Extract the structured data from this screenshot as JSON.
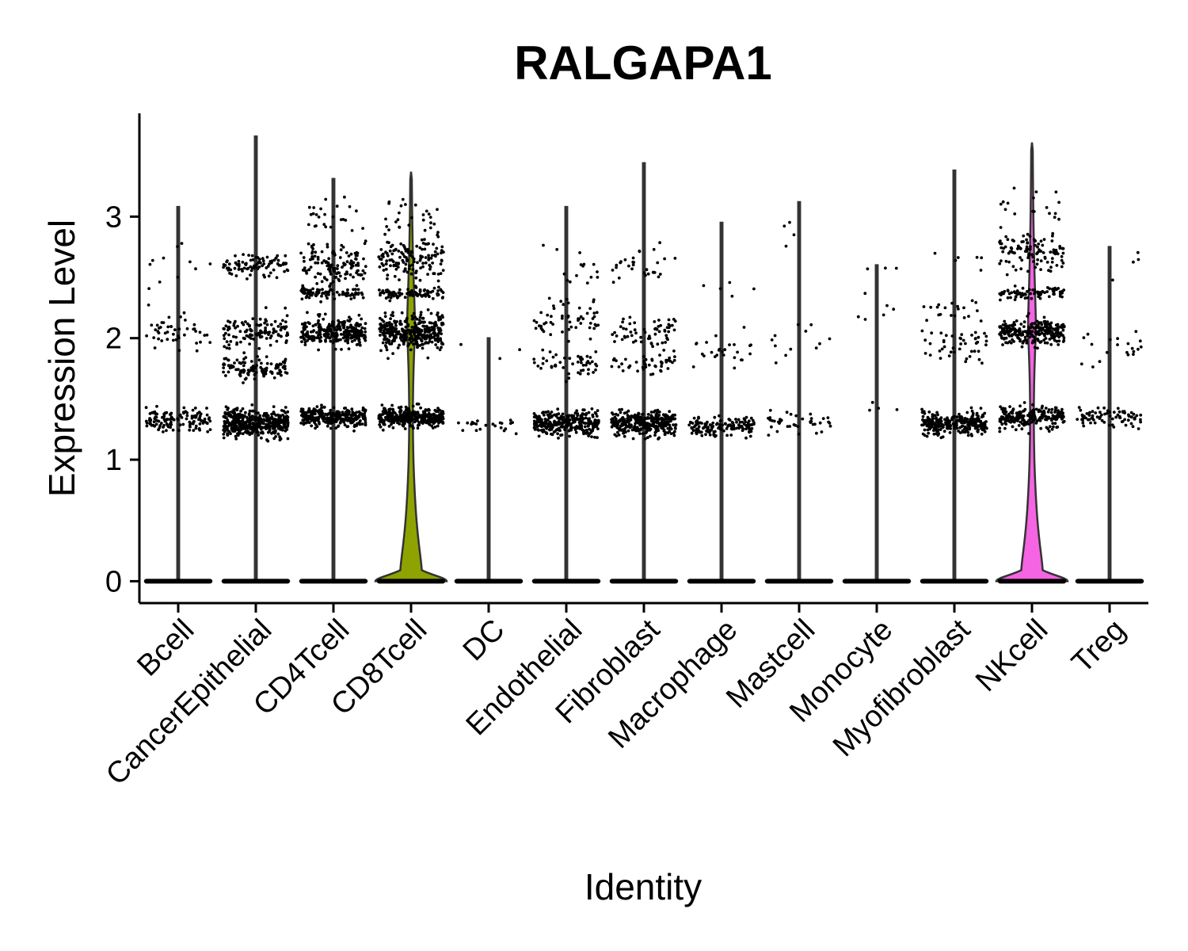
{
  "chart_data": {
    "type": "violin",
    "title": "RALGAPA1",
    "xlabel": "Identity",
    "ylabel": "Expression Level",
    "ylim": [
      -0.18,
      3.85
    ],
    "yticks": [
      0,
      1,
      2,
      3
    ],
    "ytick_labels": [
      "0",
      "1",
      "2",
      "3"
    ],
    "categories": [
      "Bcell",
      "CancerEpithelial",
      "CD4Tcell",
      "CD8Tcell",
      "DC",
      "Endothelial",
      "Fibroblast",
      "Macrophage",
      "Mastcell",
      "Monocyte",
      "Myofibroblast",
      "NKcell",
      "Treg"
    ],
    "max_expression": [
      3.08,
      3.66,
      3.31,
      3.37,
      2.0,
      3.08,
      3.44,
      2.95,
      3.12,
      2.6,
      3.38,
      3.61,
      2.75
    ],
    "fill_colors": [
      "#ffffff",
      "#ffffff",
      "#ffffff",
      "#8fa300",
      "#ffffff",
      "#ffffff",
      "#ffffff",
      "#ffffff",
      "#ffffff",
      "#ffffff",
      "#ffffff",
      "#f564e3",
      "#ffffff"
    ],
    "expressing_clusters": [
      [
        {
          "level": 1.33,
          "spread": 0.09,
          "points": 130
        },
        {
          "level": 2.05,
          "spread": 0.12,
          "points": 45
        },
        {
          "level": 2.6,
          "spread": 0.2,
          "points": 12
        }
      ],
      [
        {
          "level": 1.3,
          "spread": 0.1,
          "points": 420
        },
        {
          "level": 1.75,
          "spread": 0.08,
          "points": 110
        },
        {
          "level": 2.05,
          "spread": 0.12,
          "points": 120
        },
        {
          "level": 2.6,
          "spread": 0.08,
          "points": 90
        }
      ],
      [
        {
          "level": 1.35,
          "spread": 0.07,
          "points": 300
        },
        {
          "level": 2.05,
          "spread": 0.1,
          "points": 280
        },
        {
          "level": 2.37,
          "spread": 0.04,
          "points": 80
        },
        {
          "level": 2.6,
          "spread": 0.15,
          "points": 130
        },
        {
          "level": 3.0,
          "spread": 0.12,
          "points": 25
        }
      ],
      [
        {
          "level": 1.35,
          "spread": 0.07,
          "points": 320
        },
        {
          "level": 2.05,
          "spread": 0.12,
          "points": 340
        },
        {
          "level": 2.37,
          "spread": 0.04,
          "points": 90
        },
        {
          "level": 2.65,
          "spread": 0.15,
          "points": 140
        },
        {
          "level": 3.0,
          "spread": 0.15,
          "points": 25
        }
      ],
      [
        {
          "level": 1.27,
          "spread": 0.06,
          "points": 22
        },
        {
          "level": 1.9,
          "spread": 0.1,
          "points": 3
        }
      ],
      [
        {
          "level": 1.3,
          "spread": 0.09,
          "points": 300
        },
        {
          "level": 1.8,
          "spread": 0.1,
          "points": 50
        },
        {
          "level": 2.15,
          "spread": 0.15,
          "points": 55
        },
        {
          "level": 2.55,
          "spread": 0.15,
          "points": 15
        }
      ],
      [
        {
          "level": 1.3,
          "spread": 0.09,
          "points": 330
        },
        {
          "level": 1.8,
          "spread": 0.08,
          "points": 45
        },
        {
          "level": 2.05,
          "spread": 0.1,
          "points": 60
        },
        {
          "level": 2.6,
          "spread": 0.12,
          "points": 30
        }
      ],
      [
        {
          "level": 1.27,
          "spread": 0.07,
          "points": 150
        },
        {
          "level": 1.9,
          "spread": 0.15,
          "points": 25
        },
        {
          "level": 2.3,
          "spread": 0.2,
          "points": 6
        }
      ],
      [
        {
          "level": 1.3,
          "spread": 0.08,
          "points": 40
        },
        {
          "level": 1.95,
          "spread": 0.15,
          "points": 12
        },
        {
          "level": 2.9,
          "spread": 0.2,
          "points": 4
        }
      ],
      [
        {
          "level": 1.4,
          "spread": 0.05,
          "points": 4
        },
        {
          "level": 2.2,
          "spread": 0.2,
          "points": 6
        },
        {
          "level": 2.58,
          "spread": 0.03,
          "points": 3
        }
      ],
      [
        {
          "level": 1.3,
          "spread": 0.08,
          "points": 280
        },
        {
          "level": 1.95,
          "spread": 0.12,
          "points": 45
        },
        {
          "level": 2.2,
          "spread": 0.12,
          "points": 20
        },
        {
          "level": 2.6,
          "spread": 0.1,
          "points": 6
        }
      ],
      [
        {
          "level": 1.35,
          "spread": 0.08,
          "points": 220
        },
        {
          "level": 2.05,
          "spread": 0.09,
          "points": 260
        },
        {
          "level": 2.37,
          "spread": 0.04,
          "points": 80
        },
        {
          "level": 2.7,
          "spread": 0.15,
          "points": 110
        },
        {
          "level": 3.05,
          "spread": 0.15,
          "points": 18
        }
      ],
      [
        {
          "level": 1.35,
          "spread": 0.07,
          "points": 80
        },
        {
          "level": 1.9,
          "spread": 0.15,
          "points": 20
        },
        {
          "level": 2.5,
          "spread": 0.2,
          "points": 4
        }
      ]
    ]
  }
}
